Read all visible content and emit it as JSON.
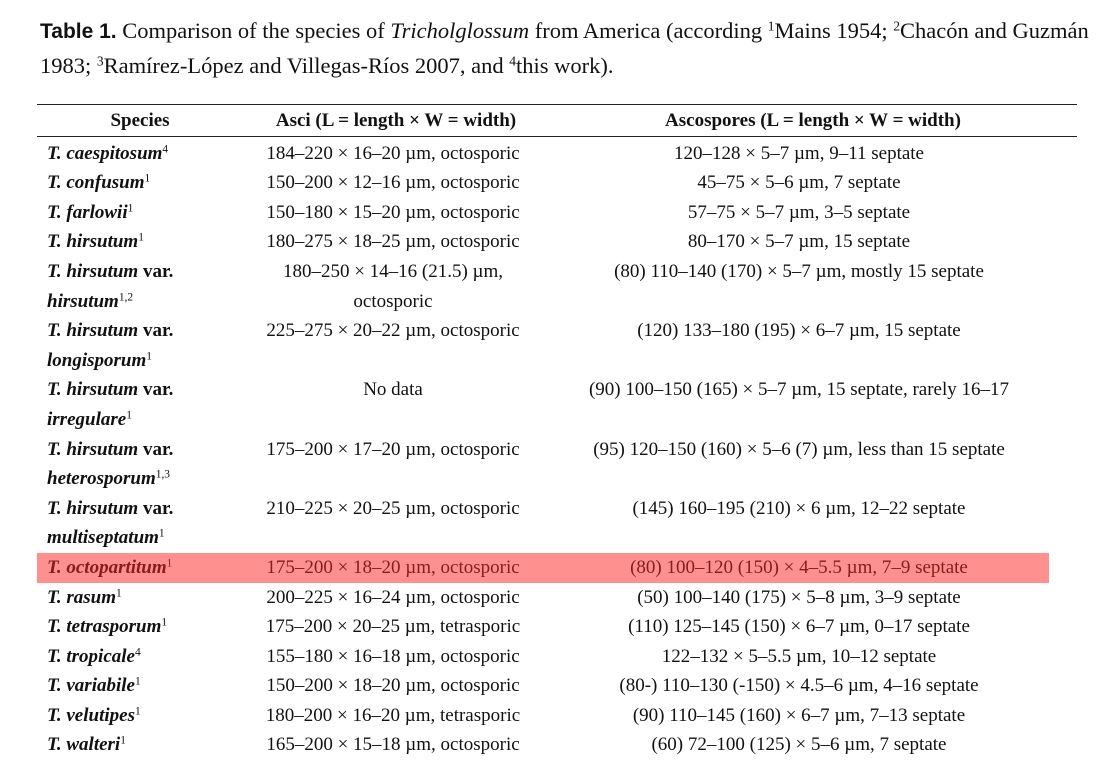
{
  "caption": {
    "label": "Table 1.",
    "text_before_italic": " Comparison of the species of ",
    "genus": "Tricholglossum",
    "text_1": " from America (according ",
    "ref1_sup": "1",
    "ref1": "Mains 1954; ",
    "ref2_sup": "2",
    "ref2": "Chacón and Guzmán 1983; ",
    "ref3_sup": "3",
    "ref3": "Ramírez-López and Villegas-Ríos 2007, and ",
    "ref4_sup": "4",
    "ref4": "this work)."
  },
  "headers": [
    "Species",
    "Asci (L = length × W = width)",
    "Ascospores (L = length × W = width)"
  ],
  "highlight_color": "#ff9090",
  "rows": [
    {
      "species": "T. caespitosum",
      "var": "",
      "var_name": "",
      "sup": "4",
      "asci": "184–220 × 16–20 µm, octosporic",
      "ascospores": "120–128 × 5–7 µm, 9–11 septate"
    },
    {
      "species": "T. confusum",
      "var": "",
      "var_name": "",
      "sup": "1",
      "asci": "150–200 × 12–16 µm, octosporic",
      "ascospores": "45–75 × 5–6 µm, 7 septate"
    },
    {
      "species": "T. farlowii",
      "var": "",
      "var_name": "",
      "sup": "1",
      "asci": "150–180 × 15–20 µm, octosporic",
      "ascospores": "57–75 × 5–7 µm, 3–5 septate"
    },
    {
      "species": "T. hirsutum",
      "var": "",
      "var_name": "",
      "sup": "1",
      "asci": "180–275 × 18–25 µm, octosporic",
      "ascospores": "80–170 × 5–7 µm, 15 septate"
    },
    {
      "species": "T. hirsutum",
      "var": "var.",
      "var_name": "hirsutum",
      "sup": "1,2",
      "asci": "180–250 × 14–16 (21.5) µm, octosporic",
      "ascospores": "(80) 110–140 (170) × 5–7 µm, mostly 15 septate"
    },
    {
      "species": "T. hirsutum",
      "var": "var.",
      "var_name": "longisporum",
      "sup": "1",
      "asci": "225–275 × 20–22 µm, octosporic",
      "ascospores": "(120) 133–180 (195) × 6–7 µm, 15 septate"
    },
    {
      "species": "T. hirsutum",
      "var": "var.",
      "var_name": "irregulare",
      "sup": "1",
      "asci": "No data",
      "ascospores": "(90) 100–150 (165) × 5–7 µm, 15 septate, rarely 16–17"
    },
    {
      "species": "T. hirsutum",
      "var": "var.",
      "var_name": "heterosporum",
      "sup": "1,3",
      "asci": "175–200 × 17–20 µm, octosporic",
      "ascospores": "(95) 120–150 (160) × 5–6 (7) µm, less than 15 septate"
    },
    {
      "species": "T. hirsutum",
      "var": "var.",
      "var_name": "multiseptatum",
      "sup": "1",
      "asci": "210–225 × 20–25 µm, octosporic",
      "ascospores": "(145) 160–195 (210) × 6 µm, 12–22 septate"
    },
    {
      "species": "T. octopartitum",
      "var": "",
      "var_name": "",
      "sup": "1",
      "asci": "175–200 × 18–20 µm, octosporic",
      "ascospores": "(80) 100–120 (150) × 4–5.5 µm, 7–9 septate",
      "highlighted": true
    },
    {
      "species": "T. rasum",
      "var": "",
      "var_name": "",
      "sup": "1",
      "asci": "200–225 × 16–24 µm, octosporic",
      "ascospores": "(50) 100–140 (175) × 5–8 µm, 3–9 septate"
    },
    {
      "species": "T. tetrasporum",
      "var": "",
      "var_name": "",
      "sup": "1",
      "asci": "175–200 × 20–25 µm, tetrasporic",
      "ascospores": "(110) 125–145 (150) × 6–7 µm, 0–17 septate"
    },
    {
      "species": "T. tropicale",
      "var": "",
      "var_name": "",
      "sup": "4",
      "asci": "155–180 × 16–18 µm, octosporic",
      "ascospores": "122–132 × 5–5.5 µm, 10–12 septate"
    },
    {
      "species": "T. variabile",
      "var": "",
      "var_name": "",
      "sup": "1",
      "asci": "150–200 × 18–20 µm, octosporic",
      "ascospores": "(80-) 110–130 (-150) × 4.5–6 µm, 4–16 septate"
    },
    {
      "species": "T. velutipes",
      "var": "",
      "var_name": "",
      "sup": "1",
      "asci": "180–200 × 16–20 µm, tetrasporic",
      "ascospores": "(90) 110–145 (160) × 6–7 µm, 7–13 septate"
    },
    {
      "species": "T. walteri",
      "var": "",
      "var_name": "",
      "sup": "1",
      "asci": "165–200 × 15–18 µm, octosporic",
      "ascospores": "(60) 72–100 (125) × 5–6 µm, 7 septate"
    }
  ]
}
